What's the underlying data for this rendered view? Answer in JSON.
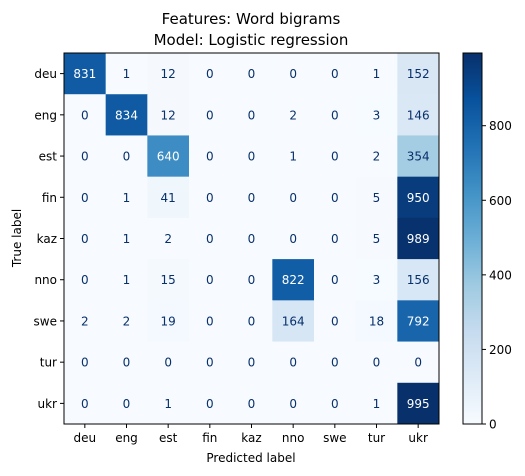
{
  "chart_data": {
    "type": "heatmap",
    "title_line1": "Features: Word bigrams",
    "title_line2": "Model: Logistic regression",
    "xlabel": "Predicted label",
    "ylabel": "True label",
    "x_categories": [
      "deu",
      "eng",
      "est",
      "fin",
      "kaz",
      "nno",
      "swe",
      "tur",
      "ukr"
    ],
    "y_categories": [
      "deu",
      "eng",
      "est",
      "fin",
      "kaz",
      "nno",
      "swe",
      "tur",
      "ukr"
    ],
    "values": [
      [
        831,
        1,
        12,
        0,
        0,
        0,
        0,
        1,
        152
      ],
      [
        0,
        834,
        12,
        0,
        0,
        2,
        0,
        3,
        146
      ],
      [
        0,
        0,
        640,
        0,
        0,
        1,
        0,
        2,
        354
      ],
      [
        0,
        1,
        41,
        0,
        0,
        0,
        0,
        5,
        950
      ],
      [
        0,
        1,
        2,
        0,
        0,
        0,
        0,
        5,
        989
      ],
      [
        0,
        1,
        15,
        0,
        0,
        822,
        0,
        3,
        156
      ],
      [
        2,
        2,
        19,
        0,
        0,
        164,
        0,
        18,
        792
      ],
      [
        0,
        0,
        0,
        0,
        0,
        0,
        0,
        0,
        0
      ],
      [
        0,
        0,
        1,
        0,
        0,
        0,
        0,
        1,
        995
      ]
    ],
    "colorbar": {
      "min": 0,
      "max": 995,
      "ticks": [
        0,
        200,
        400,
        600,
        800
      ]
    },
    "colormap": "Blues",
    "grid": false
  }
}
